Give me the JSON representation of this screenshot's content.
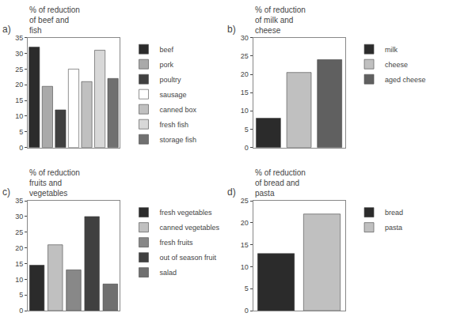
{
  "chart_data": [
    {
      "type": "bar",
      "title": "% of reduction\nof beef and\nfish",
      "annotations": [
        "a)"
      ],
      "categories": [
        null,
        null,
        null,
        null,
        null,
        null,
        null
      ],
      "series": [
        {
          "name": "beef",
          "color": "#2b2b2b",
          "values": [
            32,
            null,
            null,
            null,
            null,
            null,
            null
          ]
        },
        {
          "name": "pork",
          "color": "#aaaaaa",
          "values": [
            null,
            19.5,
            null,
            null,
            null,
            null,
            null
          ]
        },
        {
          "name": "poultry",
          "color": "#404040",
          "values": [
            null,
            null,
            12,
            null,
            null,
            null,
            null
          ]
        },
        {
          "name": "sausage",
          "color": "#ffffff",
          "values": [
            null,
            null,
            null,
            25,
            null,
            null,
            null
          ]
        },
        {
          "name": "canned box",
          "color": "#c0c0c0",
          "values": [
            null,
            null,
            null,
            null,
            21,
            null,
            null
          ]
        },
        {
          "name": "fresh fish",
          "color": "#d8d8d8",
          "values": [
            null,
            null,
            null,
            null,
            null,
            31,
            null
          ]
        },
        {
          "name": "storage fish",
          "color": "#707070",
          "values": [
            null,
            null,
            null,
            null,
            null,
            null,
            22
          ]
        }
      ],
      "ylim": [
        0,
        35
      ],
      "yticks": [
        0,
        5,
        10,
        15,
        20,
        25,
        30,
        35
      ],
      "grid": false,
      "legend": "right",
      "tick_labels": "y"
    },
    {
      "type": "bar",
      "title": "% of reduction\nof milk and\ncheese",
      "annotations": [
        "b)"
      ],
      "categories": [
        null,
        null,
        null
      ],
      "series": [
        {
          "name": "milk",
          "color": "#2b2b2b",
          "values": [
            8,
            null,
            null
          ]
        },
        {
          "name": "cheese",
          "color": "#c0c0c0",
          "values": [
            null,
            20.5,
            null
          ]
        },
        {
          "name": "aged cheese",
          "color": "#606060",
          "values": [
            null,
            null,
            24
          ]
        }
      ],
      "ylim": [
        0,
        30
      ],
      "yticks": [
        0,
        5,
        10,
        15,
        20,
        25,
        30
      ],
      "grid": false,
      "legend": "right",
      "tick_labels": "y"
    },
    {
      "type": "bar",
      "title": "% of reduction\nfruits and\nvegetables",
      "annotations": [
        "c)"
      ],
      "categories": [
        null,
        null,
        null,
        null,
        null
      ],
      "series": [
        {
          "name": "fresh vegetables",
          "color": "#2b2b2b",
          "values": [
            14.5,
            null,
            null,
            null,
            null
          ]
        },
        {
          "name": "canned vegetables",
          "color": "#c0c0c0",
          "values": [
            null,
            21,
            null,
            null,
            null
          ]
        },
        {
          "name": "fresh fruits",
          "color": "#888888",
          "values": [
            null,
            null,
            13,
            null,
            null
          ]
        },
        {
          "name": "out of season fruit",
          "color": "#404040",
          "values": [
            null,
            null,
            null,
            30,
            null
          ]
        },
        {
          "name": "salad",
          "color": "#707070",
          "values": [
            null,
            null,
            null,
            null,
            8.5
          ]
        }
      ],
      "ylim": [
        0,
        35
      ],
      "yticks": [
        0,
        5,
        10,
        15,
        20,
        25,
        30,
        35
      ],
      "grid": false,
      "legend": "right",
      "tick_labels": "y"
    },
    {
      "type": "bar",
      "title": "% of reduction\nof bread and\npasta",
      "annotations": [
        "d)"
      ],
      "categories": [
        null,
        null
      ],
      "series": [
        {
          "name": "bread",
          "color": "#2b2b2b",
          "values": [
            13,
            null
          ]
        },
        {
          "name": "pasta",
          "color": "#c0c0c0",
          "values": [
            null,
            22
          ]
        }
      ],
      "ylim": [
        0,
        25
      ],
      "yticks": [
        0,
        5,
        10,
        15,
        20,
        25
      ],
      "grid": false,
      "legend": "right",
      "tick_labels": "y"
    }
  ]
}
